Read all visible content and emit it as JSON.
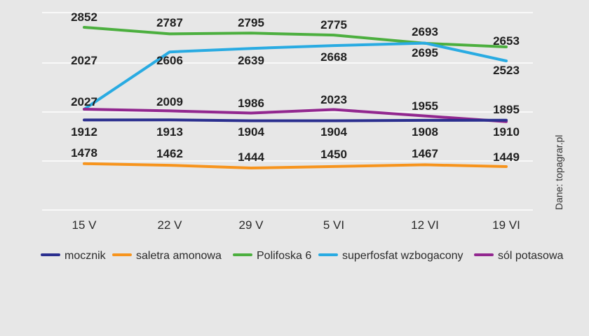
{
  "chart_data": {
    "type": "line",
    "categories": [
      "15 V",
      "22 V",
      "29 V",
      "5 VI",
      "12 VI",
      "19 VI"
    ],
    "series": [
      {
        "name": "mocznik",
        "color": "#2b2f8f",
        "values": [
          1912,
          1913,
          1904,
          1904,
          1908,
          1910
        ]
      },
      {
        "name": "saletra amonowa",
        "color": "#f7941d",
        "values": [
          1478,
          1462,
          1444,
          1450,
          1467,
          1449
        ]
      },
      {
        "name": "Polifoska 6",
        "color": "#4caf3f",
        "values": [
          2852,
          2787,
          2795,
          2775,
          2693,
          2653
        ]
      },
      {
        "name": "superfosfat wzbogacony",
        "color": "#29abe2",
        "values": [
          2027,
          2606,
          2639,
          2668,
          2695,
          2523
        ]
      },
      {
        "name": "sól potasowa",
        "color": "#92278f",
        "values": [
          2027,
          2009,
          1986,
          2023,
          1955,
          1895
        ]
      }
    ],
    "legend_position": "bottom",
    "grid": true,
    "source": "Dane: topagrar.pl"
  }
}
